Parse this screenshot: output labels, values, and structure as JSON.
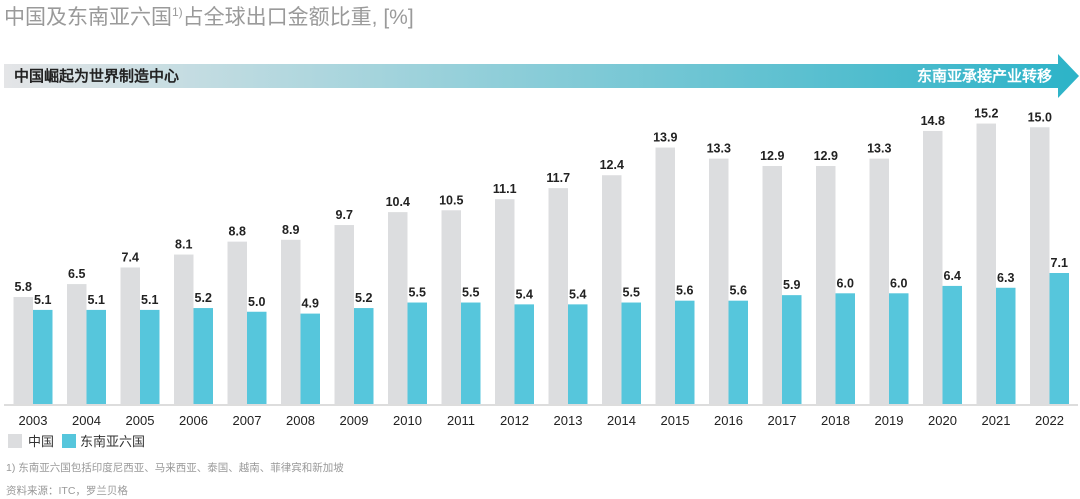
{
  "chart_data": {
    "type": "bar",
    "title": "中国及东南亚六国",
    "title_sup": "1)",
    "title_rest": "占全球出口金额比重, [%]",
    "banner_left": "中国崛起为世界制造中心",
    "banner_right": "东南亚承接产业转移",
    "categories": [
      "2003",
      "2004",
      "2005",
      "2006",
      "2007",
      "2008",
      "2009",
      "2010",
      "2011",
      "2012",
      "2013",
      "2014",
      "2015",
      "2016",
      "2017",
      "2018",
      "2019",
      "2020",
      "2021",
      "2022"
    ],
    "series": [
      {
        "name": "中国",
        "color": "#dcdddf",
        "values": [
          5.8,
          6.5,
          7.4,
          8.1,
          8.8,
          8.9,
          9.7,
          10.4,
          10.5,
          11.1,
          11.7,
          12.4,
          13.9,
          13.3,
          12.9,
          12.9,
          13.3,
          14.8,
          15.2,
          15.0
        ]
      },
      {
        "name": "东南亚六国",
        "color": "#56c6dc",
        "values": [
          5.1,
          5.1,
          5.1,
          5.2,
          5.0,
          4.9,
          5.2,
          5.5,
          5.5,
          5.4,
          5.4,
          5.5,
          5.6,
          5.6,
          5.9,
          6.0,
          6.0,
          6.4,
          6.3,
          7.1
        ]
      }
    ],
    "ylim": [
      0,
      16
    ],
    "grid": false,
    "legend_placement": "bottom-left",
    "footnote": "1) 东南亚六国包括印度尼西亚、马来西亚、泰国、越南、菲律宾和新加坡",
    "source": "资料来源：ITC，罗兰贝格"
  }
}
